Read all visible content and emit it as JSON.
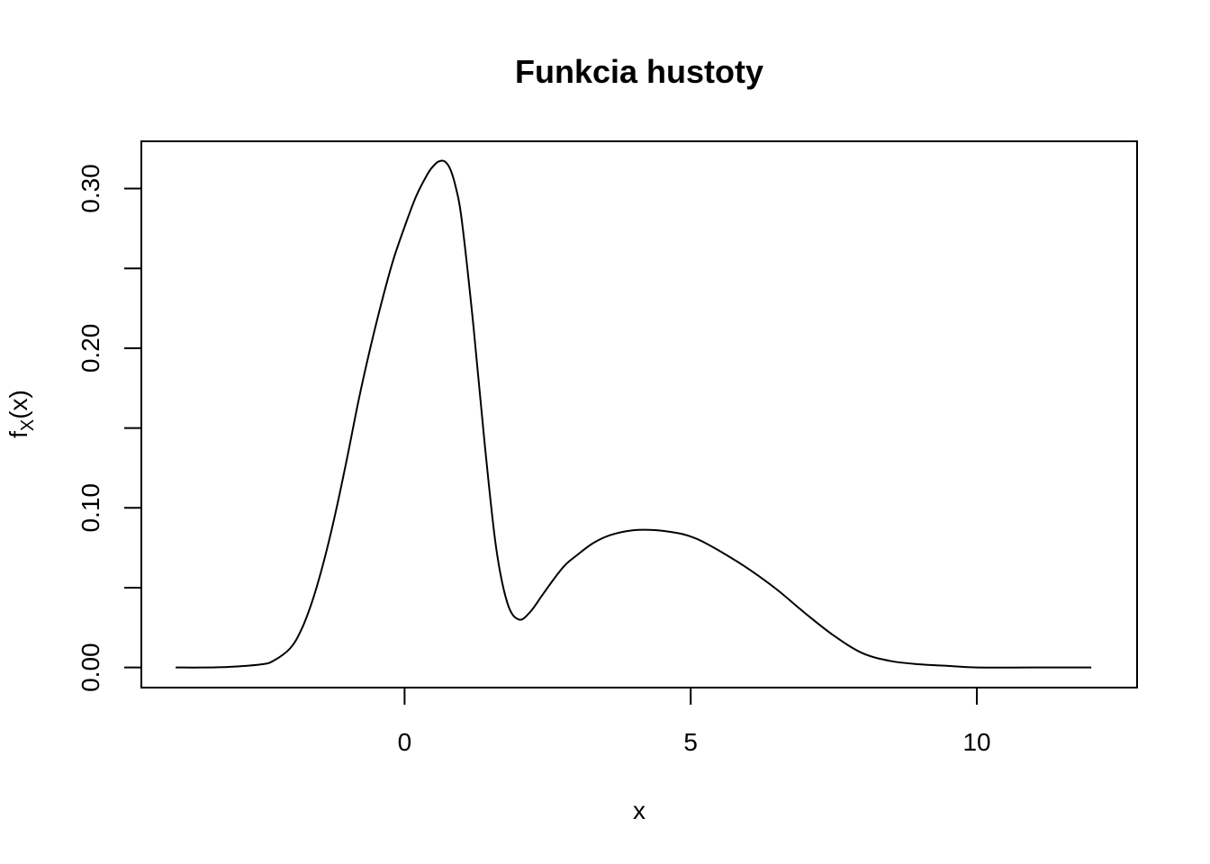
{
  "chart_data": {
    "type": "line",
    "title": "Funkcia hustoty",
    "xlabel": "x",
    "ylabel": {
      "base": "f",
      "subscript": "X",
      "suffix": "(x)"
    },
    "xlim": [
      -4.6,
      12.8
    ],
    "ylim": [
      -0.0126,
      0.3296
    ],
    "x_ticks": [
      0,
      5,
      10
    ],
    "x_tick_labels": [
      "0",
      "5",
      "10"
    ],
    "y_ticks": [
      0.0,
      0.05,
      0.1,
      0.15,
      0.2,
      0.25,
      0.3
    ],
    "y_tick_labels": [
      "0.00",
      "",
      "0.10",
      "",
      "0.20",
      "",
      "0.30"
    ],
    "grid": false,
    "legend": "none",
    "series": [
      {
        "x": [
          -4.0,
          -3.5,
          -3.0,
          -2.5,
          -2.3,
          -2.0,
          -1.8,
          -1.6,
          -1.4,
          -1.2,
          -1.0,
          -0.8,
          -0.6,
          -0.4,
          -0.2,
          0.0,
          0.2,
          0.4,
          0.5,
          0.6,
          0.7,
          0.8,
          0.9,
          1.0,
          1.2,
          1.4,
          1.6,
          1.8,
          2.0,
          2.2,
          2.4,
          2.6,
          2.8,
          3.0,
          3.3,
          3.6,
          4.0,
          4.4,
          4.8,
          5.0,
          5.2,
          5.6,
          6.0,
          6.5,
          7.0,
          7.5,
          8.0,
          8.5,
          9.0,
          9.5,
          10.0,
          11.0,
          12.0
        ],
        "y": [
          0.0,
          0.0,
          0.0005,
          0.002,
          0.004,
          0.012,
          0.024,
          0.043,
          0.068,
          0.098,
          0.132,
          0.168,
          0.2,
          0.229,
          0.255,
          0.276,
          0.295,
          0.309,
          0.314,
          0.317,
          0.317,
          0.312,
          0.3,
          0.28,
          0.215,
          0.14,
          0.075,
          0.04,
          0.03,
          0.035,
          0.045,
          0.055,
          0.064,
          0.07,
          0.078,
          0.083,
          0.086,
          0.086,
          0.084,
          0.082,
          0.079,
          0.071,
          0.062,
          0.049,
          0.034,
          0.02,
          0.009,
          0.004,
          0.002,
          0.001,
          0.0,
          0.0,
          0.0
        ]
      }
    ]
  }
}
